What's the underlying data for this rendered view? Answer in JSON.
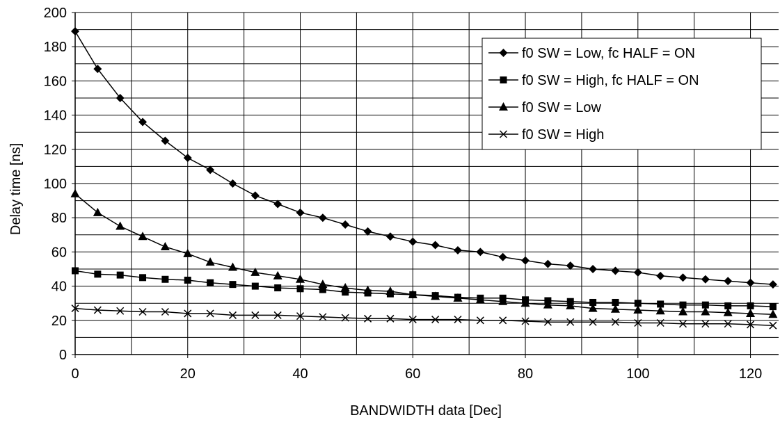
{
  "chart_data": {
    "type": "line",
    "title": "",
    "xlabel": "BANDWIDTH data [Dec]",
    "ylabel": "Delay time [ns]",
    "xlim": [
      0,
      125
    ],
    "ylim": [
      0,
      200
    ],
    "xticks": [
      0,
      20,
      40,
      60,
      80,
      100,
      120
    ],
    "yticks": [
      0,
      20,
      40,
      60,
      80,
      100,
      120,
      140,
      160,
      180,
      200
    ],
    "grid": true,
    "legend_position": "top-right",
    "x": [
      0,
      4,
      8,
      12,
      16,
      20,
      24,
      28,
      32,
      36,
      40,
      44,
      48,
      52,
      56,
      60,
      64,
      68,
      72,
      76,
      80,
      84,
      88,
      92,
      96,
      100,
      104,
      108,
      112,
      116,
      120,
      124
    ],
    "series": [
      {
        "name": "f0 SW = Low, fc HALF = ON",
        "marker": "diamond",
        "values": [
          189,
          167,
          150,
          136,
          125,
          115,
          108,
          100,
          93,
          88,
          83,
          80,
          76,
          72,
          69,
          66,
          64,
          61,
          60,
          57,
          55,
          53,
          52,
          50,
          49,
          48,
          46,
          45,
          44,
          43,
          42,
          41
        ]
      },
      {
        "name": "f0 SW = High, fc HALF = ON",
        "marker": "square",
        "values": [
          49,
          47,
          46.5,
          45,
          44,
          43.5,
          42,
          41,
          40,
          39,
          38.5,
          38,
          36.5,
          36,
          35.5,
          35,
          34.5,
          33.5,
          33,
          33,
          32,
          31.5,
          31,
          30.5,
          30.5,
          30,
          29.5,
          29,
          29,
          28.5,
          28.5,
          28
        ]
      },
      {
        "name": "f0 SW = Low",
        "marker": "triangle",
        "values": [
          94,
          83,
          75,
          69,
          63,
          59,
          54,
          51,
          48,
          46,
          44,
          41,
          39,
          37.5,
          37,
          35,
          34,
          33,
          32,
          31,
          30,
          29,
          28.5,
          27,
          26.5,
          26,
          25.5,
          25,
          25,
          24.5,
          24,
          23.5
        ]
      },
      {
        "name": "f0 SW = High",
        "marker": "x",
        "values": [
          27,
          26,
          25.5,
          25,
          25,
          24,
          24,
          23,
          23,
          23,
          22.5,
          22,
          21.5,
          21,
          21,
          20.5,
          20.5,
          20.5,
          20,
          20,
          19.5,
          19,
          19,
          19,
          19,
          18.5,
          18.5,
          18,
          18,
          18,
          17.5,
          17
        ]
      }
    ]
  }
}
